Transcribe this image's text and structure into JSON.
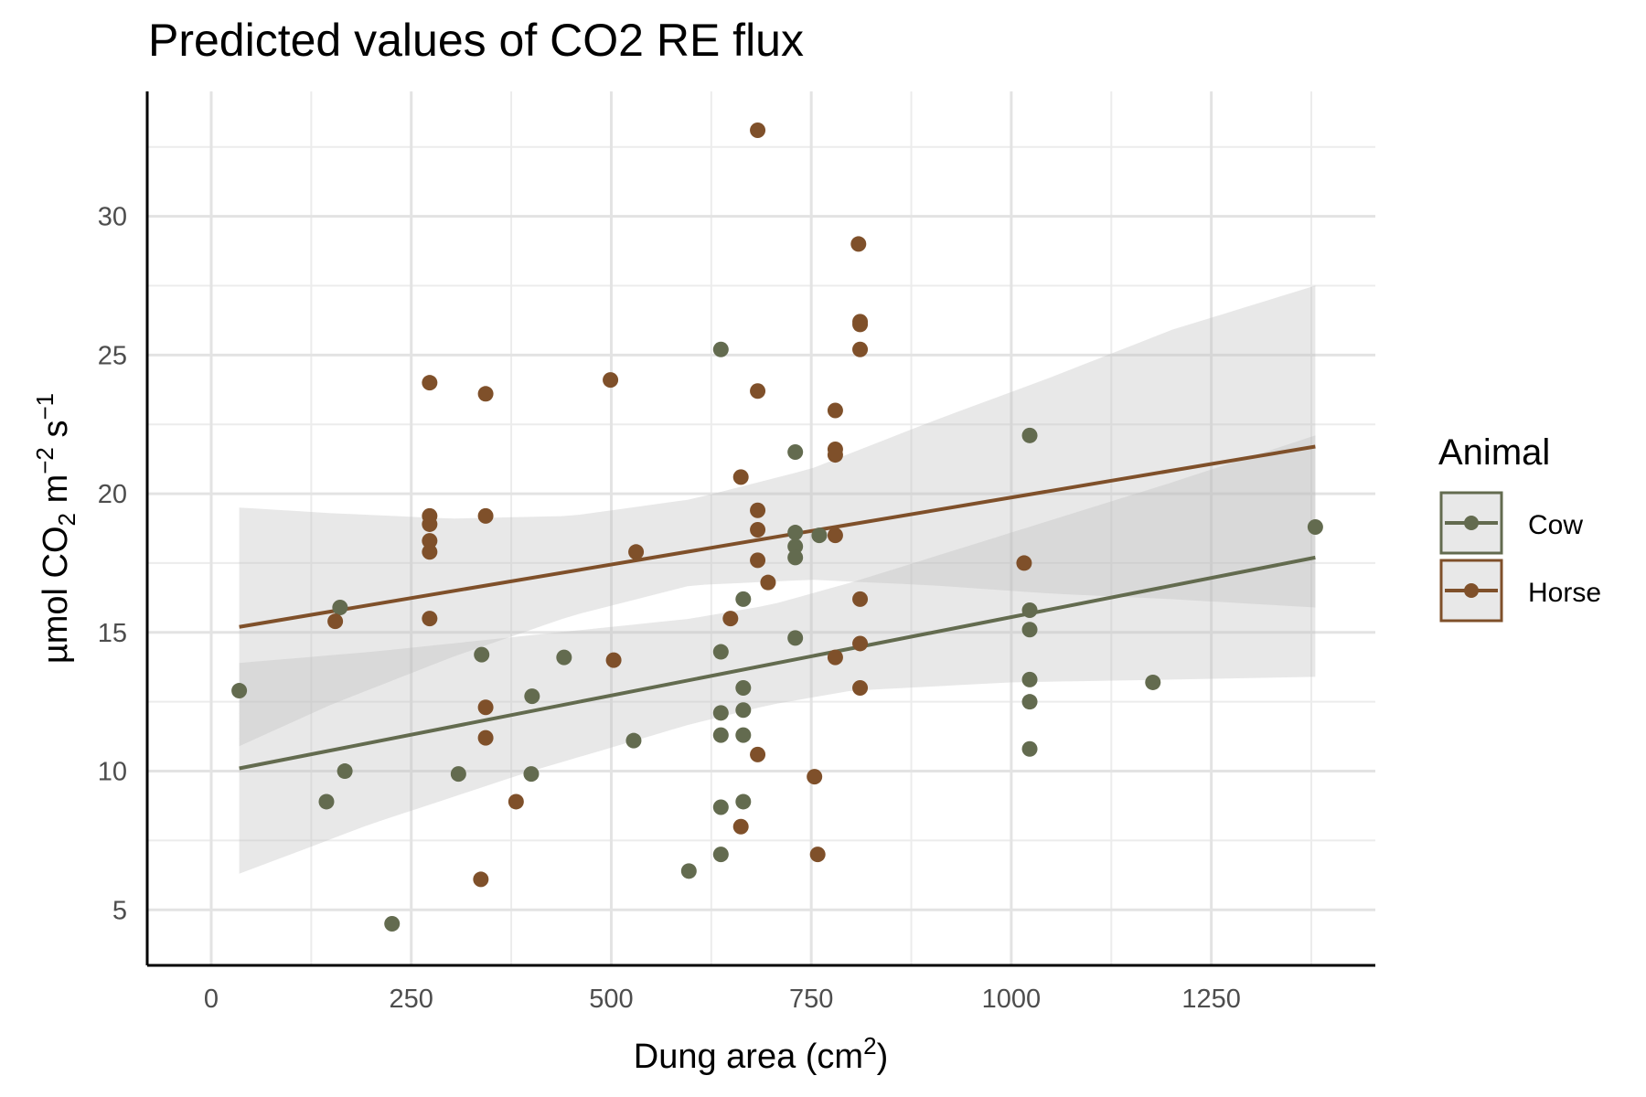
{
  "chart_data": {
    "type": "scatter",
    "title": "Predicted values of CO2 RE flux",
    "xlabel": {
      "main": "Dung area (cm",
      "sup": "2",
      "end": ")"
    },
    "ylabel": {
      "p1": "µmol CO",
      "sub": "2",
      "p2": " m",
      "sup1": "−2",
      "p3": " s",
      "sup2": "−1"
    },
    "xlim": [
      -80,
      1455
    ],
    "ylim": [
      3,
      34.5
    ],
    "x_ticks": [
      0,
      250,
      500,
      750,
      1000,
      1250
    ],
    "x_tick_labels": [
      "0",
      "250",
      "500",
      "750",
      "1000",
      "1250"
    ],
    "y_ticks": [
      5,
      10,
      15,
      20,
      25,
      30
    ],
    "y_tick_labels": [
      "5",
      "10",
      "15",
      "20",
      "25",
      "30"
    ],
    "x_minor": [
      125,
      375,
      625,
      875,
      1125,
      1375
    ],
    "y_minor": [
      7.5,
      12.5,
      17.5,
      22.5,
      27.5,
      32.5
    ],
    "grid": true,
    "legend": {
      "title": "Animal",
      "position": "right"
    },
    "series": [
      {
        "name": "Cow",
        "color": "#636b4f",
        "points": [
          [
            35,
            12.9
          ],
          [
            144,
            8.9
          ],
          [
            161,
            15.9
          ],
          [
            167,
            10.0
          ],
          [
            226,
            4.5
          ],
          [
            309,
            9.9
          ],
          [
            338,
            14.2
          ],
          [
            400,
            9.9
          ],
          [
            401,
            12.7
          ],
          [
            441,
            14.1
          ],
          [
            528,
            11.1
          ],
          [
            597,
            6.4
          ],
          [
            637,
            25.2
          ],
          [
            637,
            14.3
          ],
          [
            637,
            12.1
          ],
          [
            637,
            11.3
          ],
          [
            637,
            8.7
          ],
          [
            637,
            7.0
          ],
          [
            665,
            16.2
          ],
          [
            665,
            13.0
          ],
          [
            665,
            12.2
          ],
          [
            665,
            11.3
          ],
          [
            665,
            8.9
          ],
          [
            730,
            21.5
          ],
          [
            730,
            18.6
          ],
          [
            730,
            18.1
          ],
          [
            730,
            17.7
          ],
          [
            730,
            14.8
          ],
          [
            760,
            18.5
          ],
          [
            1023,
            22.1
          ],
          [
            1023,
            15.8
          ],
          [
            1023,
            15.1
          ],
          [
            1023,
            13.3
          ],
          [
            1023,
            12.5
          ],
          [
            1023,
            10.8
          ],
          [
            1177,
            13.2
          ],
          [
            1380,
            18.8
          ]
        ],
        "fit": {
          "x": [
            35,
            1380
          ],
          "y": [
            10.1,
            17.7
          ]
        },
        "ci": {
          "x": [
            35,
            200,
            400,
            600,
            700,
            800,
            1000,
            1200,
            1380
          ],
          "lower": [
            6.3,
            8.1,
            10.0,
            11.7,
            12.4,
            12.9,
            13.2,
            13.3,
            13.4
          ],
          "upper": [
            13.9,
            14.3,
            14.9,
            15.5,
            16.0,
            16.8,
            18.6,
            20.4,
            22.1
          ]
        }
      },
      {
        "name": "Horse",
        "color": "#7f502a",
        "points": [
          [
            155,
            15.4
          ],
          [
            273,
            24.0
          ],
          [
            273,
            19.2
          ],
          [
            273,
            18.9
          ],
          [
            273,
            18.3
          ],
          [
            273,
            17.9
          ],
          [
            273,
            15.5
          ],
          [
            337,
            6.1
          ],
          [
            343,
            23.6
          ],
          [
            343,
            19.2
          ],
          [
            343,
            12.3
          ],
          [
            343,
            11.2
          ],
          [
            381,
            8.9
          ],
          [
            499,
            24.1
          ],
          [
            503,
            14.0
          ],
          [
            531,
            17.9
          ],
          [
            649,
            15.5
          ],
          [
            662,
            20.6
          ],
          [
            662,
            8.0
          ],
          [
            683,
            33.1
          ],
          [
            683,
            23.7
          ],
          [
            683,
            19.4
          ],
          [
            683,
            18.7
          ],
          [
            683,
            17.6
          ],
          [
            683,
            10.6
          ],
          [
            696,
            16.8
          ],
          [
            754,
            9.8
          ],
          [
            758,
            7.0
          ],
          [
            780,
            23.0
          ],
          [
            780,
            21.6
          ],
          [
            780,
            21.4
          ],
          [
            780,
            18.5
          ],
          [
            780,
            14.1
          ],
          [
            809,
            29.0
          ],
          [
            811,
            26.2
          ],
          [
            811,
            26.1
          ],
          [
            811,
            25.2
          ],
          [
            811,
            16.2
          ],
          [
            811,
            14.6
          ],
          [
            811,
            13.0
          ],
          [
            1016,
            17.5
          ]
        ],
        "fit": {
          "x": [
            35,
            1380
          ],
          "y": [
            15.2,
            21.7
          ]
        },
        "ci": {
          "x": [
            35,
            150,
            300,
            450,
            600,
            750,
            900,
            1050,
            1200,
            1380
          ],
          "lower": [
            10.9,
            12.4,
            14.1,
            15.6,
            16.7,
            16.9,
            16.7,
            16.4,
            16.2,
            15.9
          ],
          "upper": [
            19.5,
            19.3,
            19.1,
            19.2,
            19.8,
            20.9,
            22.6,
            24.2,
            25.9,
            27.5
          ]
        }
      }
    ]
  }
}
